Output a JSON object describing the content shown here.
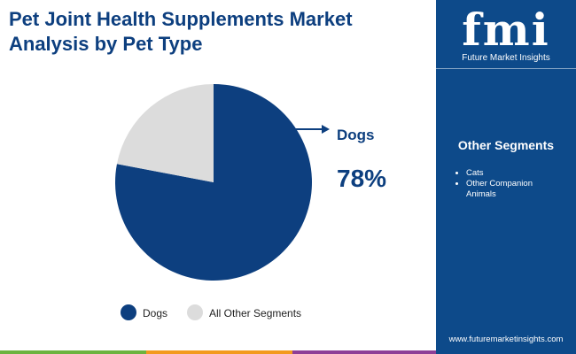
{
  "chart_data": {
    "type": "pie",
    "title": "Pet Joint Health Supplements Market Analysis by Pet Type",
    "categories": [
      "Dogs",
      "All Other Segments"
    ],
    "values": [
      78,
      22
    ],
    "value_labels": [
      "78%",
      null
    ],
    "colors": [
      "#0d3f7f",
      "#dcdcdc"
    ]
  },
  "sidebar": {
    "logo": "fmi",
    "brand": "Future Market Insights",
    "heading": "Other Segments",
    "items": [
      "Cats",
      "Other Companion Animals"
    ],
    "website": "www.futuremarketinsights.com"
  }
}
